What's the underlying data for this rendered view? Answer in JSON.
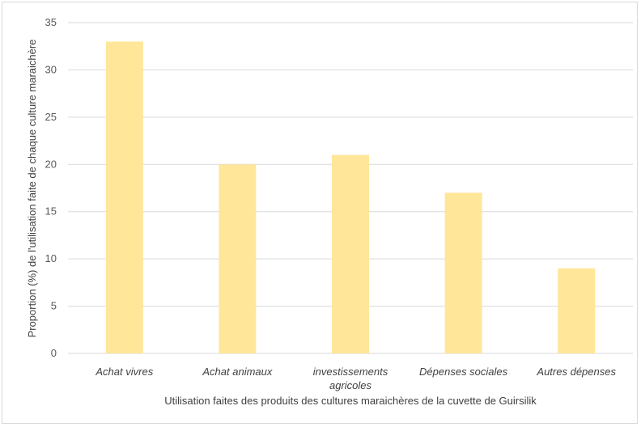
{
  "chart_data": {
    "type": "bar",
    "categories": [
      "Achat vivres",
      "Achat animaux",
      "investissements agricoles",
      "Dépenses sociales",
      "Autres dépenses"
    ],
    "category_lines": [
      [
        "Achat vivres"
      ],
      [
        "Achat animaux"
      ],
      [
        "investissements",
        "agricoles"
      ],
      [
        "Dépenses sociales"
      ],
      [
        "Autres dépenses"
      ]
    ],
    "values": [
      33,
      20,
      21,
      17,
      9
    ],
    "xlabel": "Utilisation faites des produits des cultures maraichères de la cuvette de Guirsilik",
    "ylabel": "Proportion (%) de l'utilisation faite de chaque culture maraichère",
    "ylim": [
      0,
      35
    ],
    "yticks": [
      0,
      5,
      10,
      15,
      20,
      25,
      30,
      35
    ],
    "grid": true,
    "legend": "none",
    "bar_color": "#ffe699",
    "grid_color": "#d9d9d9"
  }
}
